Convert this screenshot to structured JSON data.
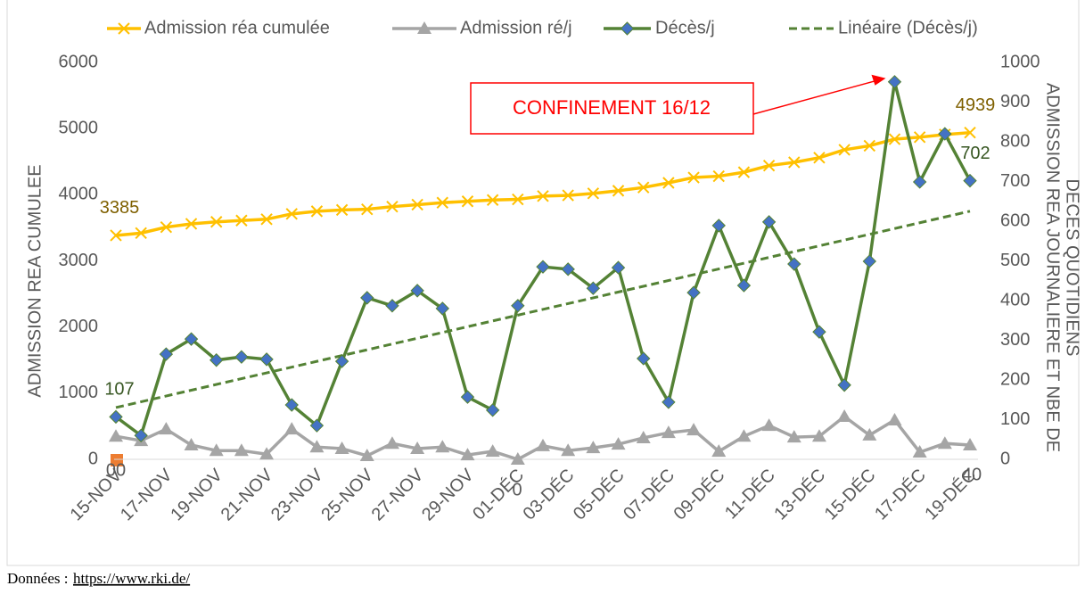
{
  "chart_data": {
    "type": "line",
    "categories": [
      "15-NOV",
      null,
      "17-NOV",
      null,
      "19-NOV",
      null,
      "21-NOV",
      null,
      "23-NOV",
      null,
      "25-NOV",
      null,
      "27-NOV",
      null,
      "29-NOV",
      null,
      "01-DÉC",
      null,
      "03-DÉC",
      null,
      "05-DÉC",
      null,
      "07-DÉC",
      null,
      "09-DÉC",
      null,
      "11-DÉC",
      null,
      "13-DÉC",
      null,
      "15-DÉC",
      null,
      "17-DÉC",
      null,
      "19-DÉC"
    ],
    "series": [
      {
        "name": "Admission réa cumulée",
        "color": "#ffc000",
        "marker": "x",
        "label_color": "#7f6000",
        "data_labels": [
          0,
          34
        ],
        "values": [
          3385,
          3420,
          3510,
          3560,
          3590,
          3610,
          3630,
          3710,
          3750,
          3770,
          3780,
          3820,
          3850,
          3880,
          3900,
          3920,
          3930,
          3980,
          3990,
          4020,
          4060,
          4110,
          4180,
          4260,
          4280,
          4340,
          4440,
          4490,
          4560,
          4680,
          4740,
          4840,
          4870,
          4910,
          4939
        ]
      },
      {
        "name": "Admission ré/j",
        "color": "#a5a5a5",
        "marker": "triangle",
        "axis": "y2",
        "values": [
          58,
          47,
          76,
          36,
          22,
          22,
          13,
          76,
          31,
          27,
          9,
          40,
          27,
          31,
          11,
          20,
          0,
          34,
          22,
          29,
          38,
          54,
          67,
          74,
          20,
          58,
          85,
          56,
          58,
          108,
          61,
          99,
          18,
          40,
          36
        ]
      },
      {
        "name": "Décès/j",
        "color": "#548235",
        "marker": "diamond",
        "marker_color": "#4472c4",
        "axis": "y2",
        "label_color": "#385723",
        "data_labels": [
          0,
          34
        ],
        "values": [
          107,
          60,
          265,
          303,
          250,
          258,
          252,
          137,
          85,
          247,
          407,
          387,
          425,
          380,
          157,
          124,
          387,
          485,
          479,
          431,
          483,
          254,
          144,
          420,
          589,
          438,
          598,
          492,
          321,
          187,
          499,
          951,
          699,
          820,
          702
        ]
      }
    ],
    "trendline": {
      "name": "Linéaire (Décès/j)",
      "color": "#548235",
      "style": "dashed",
      "kind": "linear",
      "series": 2
    },
    "ylabel": "ADMISSION REA CUMULEE",
    "y2label": [
      "ADMISSION REA JOURNALIERE ET NBE DE",
      "DECES QUOTIDIENS"
    ],
    "ylim": [
      0,
      6000
    ],
    "yticks": [
      0,
      1000,
      2000,
      3000,
      4000,
      5000,
      6000
    ],
    "y2lim": [
      0,
      1000
    ],
    "y2ticks": [
      0,
      100,
      200,
      300,
      400,
      500,
      600,
      700,
      800,
      900,
      1000
    ],
    "grid": false,
    "legend": "top",
    "annotation": {
      "text": "CONFINEMENT 16/12",
      "point": 31,
      "color": "#ff0000"
    },
    "stray_labels": [
      "00",
      "0",
      "40"
    ],
    "source": {
      "prefix": "Données : ",
      "link": "https://www.rki.de/"
    }
  }
}
